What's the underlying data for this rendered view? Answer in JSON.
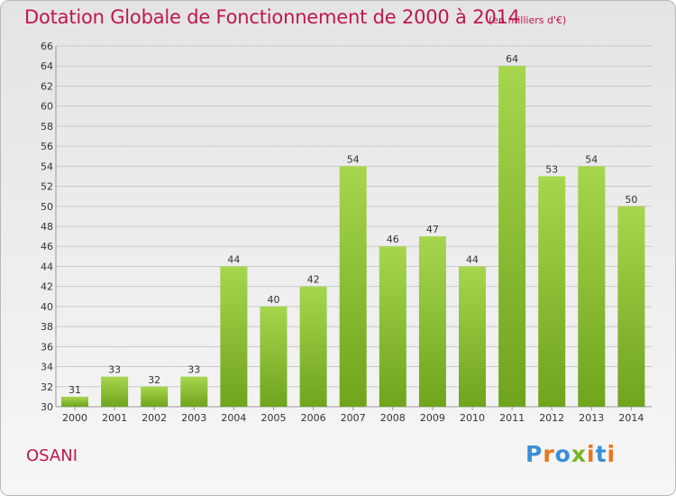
{
  "header": {
    "title": "Dotation Globale de Fonctionnement de 2000 à 2014",
    "unit": "(en milliers d'€)"
  },
  "footer": {
    "commune": "OSANI",
    "brand": "Proxiti",
    "brand_colors": [
      "#3a8fd6",
      "#e8771a",
      "#3a8fd6",
      "#7bb52a",
      "#e8771a",
      "#3a8fd6",
      "#e8771a"
    ]
  },
  "colors": {
    "title": "#c0164e",
    "bar_light": "#a6d64e",
    "bar_dark": "#6fa41c",
    "grid": "#c9c9c9",
    "axis_text": "#333333"
  },
  "chart_data": {
    "type": "bar",
    "title": "Dotation Globale de Fonctionnement de 2000 à 2014",
    "ylabel": "",
    "xlabel": "",
    "categories": [
      "2000",
      "2001",
      "2002",
      "2003",
      "2004",
      "2005",
      "2006",
      "2007",
      "2008",
      "2009",
      "2010",
      "2011",
      "2012",
      "2013",
      "2014"
    ],
    "values": [
      31,
      33,
      32,
      33,
      44,
      40,
      42,
      54,
      46,
      47,
      44,
      64,
      53,
      54,
      50
    ],
    "ylim": [
      30,
      66
    ],
    "yticks": [
      30,
      32,
      34,
      36,
      38,
      40,
      42,
      44,
      46,
      48,
      50,
      52,
      54,
      56,
      58,
      60,
      62,
      64,
      66
    ],
    "grid": true,
    "data_labels": true
  }
}
